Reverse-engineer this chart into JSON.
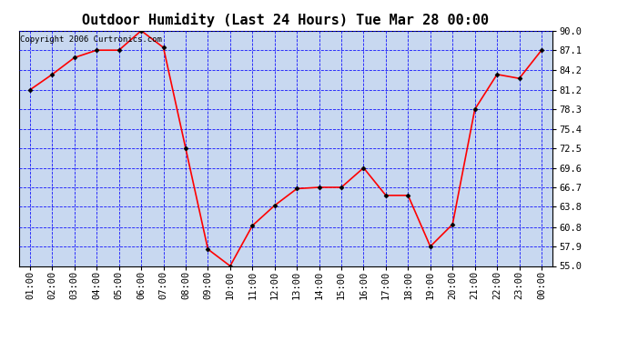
{
  "title": "Outdoor Humidity (Last 24 Hours) Tue Mar 28 00:00",
  "copyright": "Copyright 2006 Curtronics.com",
  "x_labels": [
    "01:00",
    "02:00",
    "03:00",
    "04:00",
    "05:00",
    "06:00",
    "07:00",
    "08:00",
    "09:00",
    "10:00",
    "11:00",
    "12:00",
    "13:00",
    "14:00",
    "15:00",
    "16:00",
    "17:00",
    "18:00",
    "19:00",
    "20:00",
    "21:00",
    "22:00",
    "23:00",
    "00:00"
  ],
  "y_values": [
    81.2,
    83.5,
    86.0,
    87.1,
    87.1,
    90.0,
    87.5,
    72.5,
    57.5,
    55.0,
    61.0,
    64.0,
    66.5,
    66.7,
    66.7,
    69.6,
    65.5,
    65.5,
    57.9,
    61.2,
    78.3,
    83.5,
    82.9,
    87.1
  ],
  "y_ticks": [
    55.0,
    57.9,
    60.8,
    63.8,
    66.7,
    69.6,
    72.5,
    75.4,
    78.3,
    81.2,
    84.2,
    87.1,
    90.0
  ],
  "ylim": [
    55.0,
    90.0
  ],
  "line_color": "red",
  "marker": "D",
  "marker_size": 2.5,
  "bg_color": "#c8d8f0",
  "outer_bg": "white",
  "grid_color": "blue",
  "title_fontsize": 11,
  "tick_fontsize": 7.5,
  "copyright_fontsize": 6.5
}
